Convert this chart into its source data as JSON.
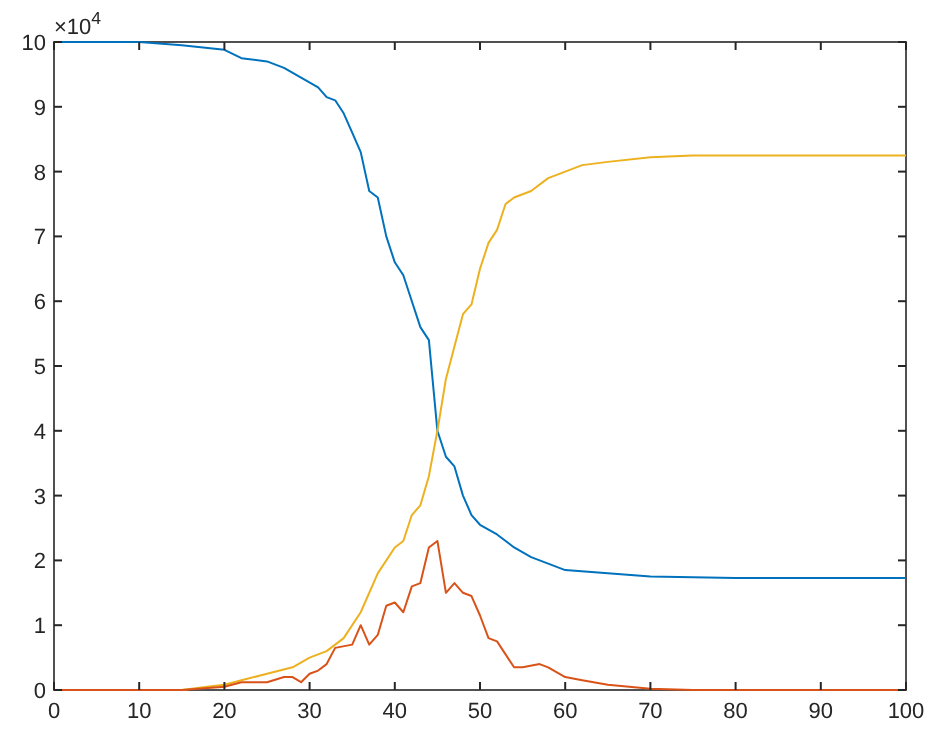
{
  "chart_data": {
    "type": "line",
    "xlim": [
      0,
      100
    ],
    "xticks": [
      0,
      10,
      20,
      30,
      40,
      50,
      60,
      70,
      80,
      90,
      100
    ],
    "ylim": [
      0,
      10
    ],
    "yticks": [
      0,
      1,
      2,
      3,
      4,
      5,
      6,
      7,
      8,
      9,
      10
    ],
    "grid": false,
    "annotations": [
      "×10$^{4}$"
    ],
    "series": [
      {
        "color": "#0072bd",
        "x": [
          0,
          10,
          15,
          20,
          22,
          25,
          27,
          29,
          31,
          32,
          33,
          34,
          35,
          36,
          37,
          38,
          39,
          40,
          41,
          42,
          43,
          44,
          45,
          46,
          47,
          48,
          49,
          50,
          52,
          54,
          56,
          58,
          60,
          65,
          70,
          80,
          100
        ],
        "values": [
          10,
          10,
          9.95,
          9.88,
          9.75,
          9.7,
          9.6,
          9.45,
          9.3,
          9.15,
          9.1,
          8.9,
          8.6,
          8.3,
          7.7,
          7.6,
          7.0,
          6.6,
          6.4,
          6.0,
          5.6,
          5.4,
          4.0,
          3.6,
          3.45,
          3.0,
          2.7,
          2.55,
          2.4,
          2.2,
          2.05,
          1.95,
          1.85,
          1.8,
          1.75,
          1.73,
          1.73
        ]
      },
      {
        "color": "#edb120",
        "x": [
          0,
          15,
          18,
          20,
          22,
          25,
          28,
          30,
          32,
          34,
          36,
          38,
          40,
          41,
          42,
          43,
          44,
          45,
          46,
          47,
          48,
          49,
          50,
          51,
          52,
          53,
          54,
          55,
          56,
          58,
          60,
          62,
          65,
          70,
          75,
          100
        ],
        "values": [
          0,
          0,
          0.05,
          0.08,
          0.15,
          0.25,
          0.35,
          0.5,
          0.6,
          0.8,
          1.2,
          1.8,
          2.2,
          2.3,
          2.7,
          2.85,
          3.3,
          4.0,
          4.8,
          5.3,
          5.8,
          5.95,
          6.5,
          6.9,
          7.1,
          7.5,
          7.6,
          7.65,
          7.7,
          7.9,
          8.0,
          8.1,
          8.15,
          8.22,
          8.25,
          8.25
        ]
      },
      {
        "color": "#d95319",
        "x": [
          0,
          15,
          20,
          22,
          25,
          27,
          28,
          29,
          30,
          31,
          32,
          33,
          35,
          36,
          37,
          38,
          39,
          40,
          41,
          42,
          43,
          44,
          45,
          46,
          47,
          48,
          49,
          50,
          51,
          52,
          53,
          54,
          55,
          57,
          58,
          60,
          62,
          65,
          70,
          75,
          100
        ],
        "values": [
          0,
          0,
          0.05,
          0.12,
          0.12,
          0.2,
          0.2,
          0.12,
          0.25,
          0.3,
          0.4,
          0.65,
          0.7,
          1.0,
          0.7,
          0.85,
          1.3,
          1.35,
          1.2,
          1.6,
          1.65,
          2.2,
          2.3,
          1.5,
          1.65,
          1.5,
          1.45,
          1.15,
          0.8,
          0.75,
          0.55,
          0.35,
          0.35,
          0.4,
          0.35,
          0.2,
          0.15,
          0.08,
          0.02,
          0,
          0
        ]
      }
    ]
  }
}
